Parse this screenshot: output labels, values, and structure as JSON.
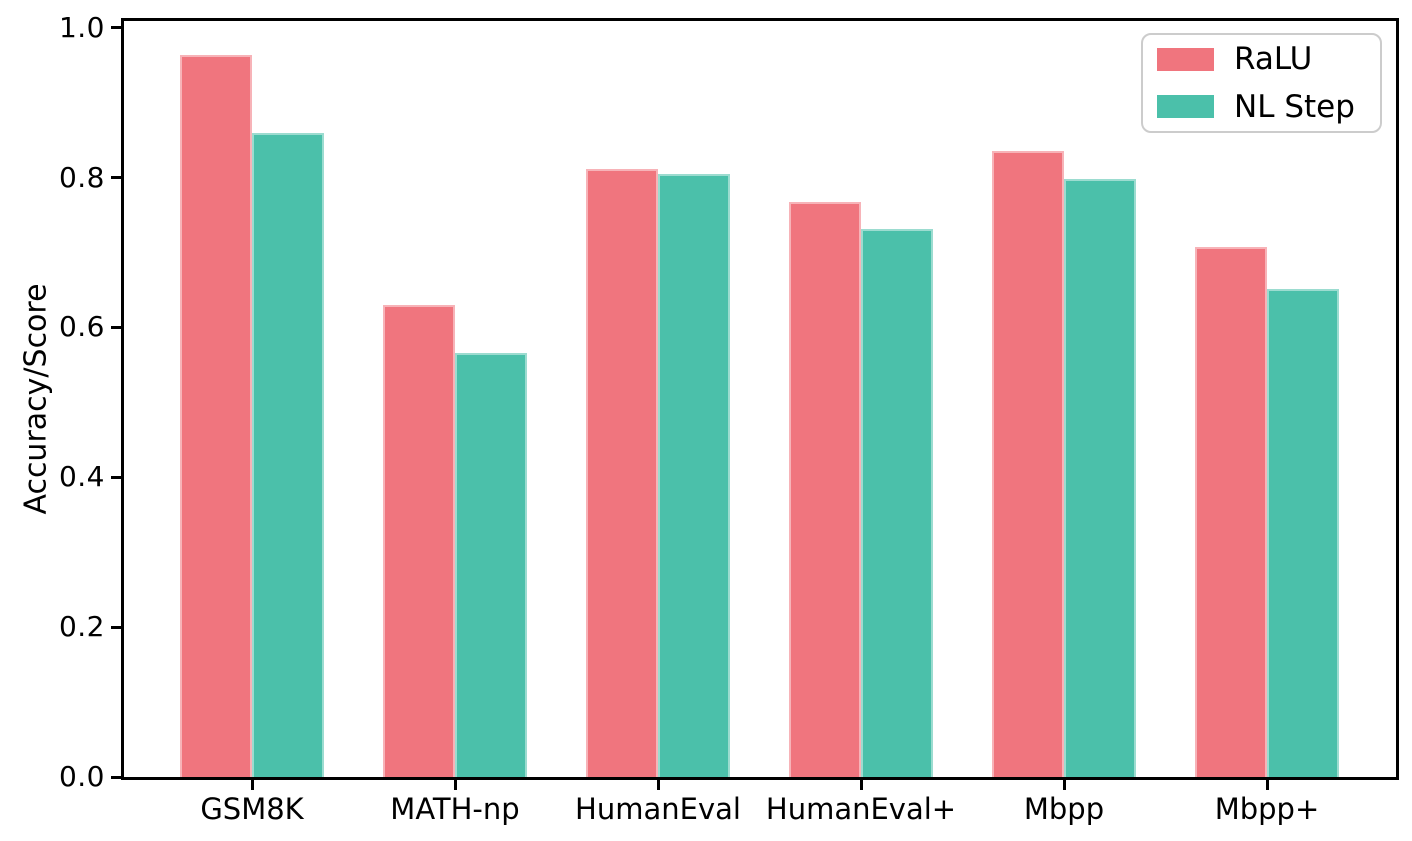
{
  "figure": {
    "background": "#FFFFFF"
  },
  "chart_data": {
    "type": "bar",
    "title": "",
    "xlabel": "",
    "ylabel": "Accuracy/Score",
    "categories": [
      "GSM8K",
      "MATH-np",
      "HumanEval",
      "HumanEval+",
      "Mbpp",
      "Mbpp+"
    ],
    "series": [
      {
        "name": "RaLU",
        "color": "#F0757E",
        "values": [
          0.964,
          0.63,
          0.811,
          0.768,
          0.835,
          0.708
        ]
      },
      {
        "name": "NL Step",
        "color": "#4BC0AA",
        "values": [
          0.86,
          0.566,
          0.805,
          0.732,
          0.798,
          0.651
        ]
      }
    ],
    "ylim": [
      0,
      1.01
    ],
    "yticks": [
      0.0,
      0.2,
      0.4,
      0.6,
      0.8,
      1.0
    ],
    "ytick_labels": [
      "0.0",
      "0.2",
      "0.4",
      "0.6",
      "0.8",
      "1.0"
    ],
    "grid": false,
    "legend": {
      "position": "upper-right",
      "border_color": "#CCCCCC"
    }
  }
}
